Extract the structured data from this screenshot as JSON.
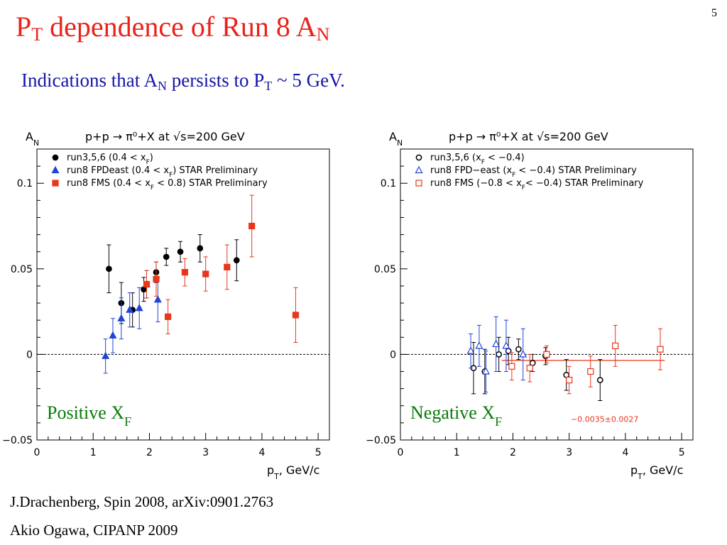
{
  "page_number": "5",
  "title": {
    "main": "P",
    "sub_t": "T",
    "middle": " dependence of Run 8 A",
    "sub_n": "N"
  },
  "subtitle": {
    "pre": "Indications that A",
    "sub_n": "N",
    "mid": " persists to P",
    "sub_t": "T",
    "post": " ~ 5 GeV."
  },
  "footer": {
    "line1": "J.Drachenberg, Spin 2008, arXiv:0901.2763",
    "line2": "Akio Ogawa, CIPANP 2009"
  },
  "colors": {
    "title": "#e8231b",
    "subtitle": "#1515a8",
    "black": "#000000",
    "blue": "#1f45d6",
    "red": "#e8361b",
    "green": "#0a7a0a"
  },
  "chart_data": [
    {
      "type": "scatter",
      "title": "p+p → π⁰+X at √s=200 GeV",
      "ylabel": "A_N",
      "xlabel": "p_T, GeV/c",
      "xlim": [
        0,
        5.2
      ],
      "ylim": [
        -0.05,
        0.12
      ],
      "xticks": [
        0,
        1,
        2,
        3,
        4,
        5
      ],
      "yticks": [
        -0.05,
        0,
        0.05,
        0.1
      ],
      "ytick_labels": [
        "−0.05",
        "0",
        "0.05",
        "0.1"
      ],
      "grid": false,
      "legend_position": "top-left",
      "annotation": "Positive X_F",
      "series": [
        {
          "name": "run3,5,6 (0.4 < x_F)",
          "marker": "circle-filled",
          "color": "#000000",
          "x": [
            1.28,
            1.5,
            1.7,
            1.9,
            2.12,
            2.3,
            2.55,
            2.9,
            3.55
          ],
          "y": [
            0.05,
            0.03,
            0.026,
            0.038,
            0.048,
            0.057,
            0.06,
            0.062,
            0.055
          ],
          "err": [
            0.014,
            0.012,
            0.01,
            0.007,
            0.006,
            0.005,
            0.006,
            0.008,
            0.012
          ]
        },
        {
          "name": "run8 FPDeast (0.4 < x_F)  STAR Preliminary",
          "marker": "triangle-filled",
          "color": "#1f45d6",
          "x": [
            1.22,
            1.35,
            1.5,
            1.65,
            1.82,
            1.95,
            2.15
          ],
          "y": [
            -0.001,
            0.011,
            0.021,
            0.026,
            0.027,
            0.041,
            0.032
          ],
          "err": [
            0.01,
            0.01,
            0.012,
            0.01,
            0.012,
            0.008,
            0.013
          ]
        },
        {
          "name": "run8 FMS (0.4 < x_F < 0.8) STAR Preliminary",
          "marker": "square-filled",
          "color": "#e8361b",
          "x": [
            1.95,
            2.12,
            2.33,
            2.63,
            3.0,
            3.38,
            3.82,
            4.6
          ],
          "y": [
            0.041,
            0.044,
            0.022,
            0.048,
            0.047,
            0.051,
            0.075,
            0.023
          ],
          "err": [
            0.008,
            0.01,
            0.01,
            0.008,
            0.01,
            0.013,
            0.018,
            0.016
          ]
        }
      ]
    },
    {
      "type": "scatter",
      "title": "p+p → π⁰+X at √s=200 GeV",
      "ylabel": "A_N",
      "xlabel": "p_T, GeV/c",
      "xlim": [
        0,
        5.2
      ],
      "ylim": [
        -0.05,
        0.12
      ],
      "xticks": [
        0,
        1,
        2,
        3,
        4,
        5
      ],
      "yticks": [
        -0.05,
        0,
        0.05,
        0.1
      ],
      "ytick_labels": [
        "−0.05",
        "0",
        "0.05",
        "0.1"
      ],
      "grid": false,
      "legend_position": "top-left",
      "annotation": "Negative X_F",
      "fit_label": "−0.0035±0.0027",
      "fit_value": -0.0035,
      "fit_range": [
        1.8,
        4.7
      ],
      "series": [
        {
          "name": "run3,5,6        (x_F < −0.4)",
          "marker": "circle-open",
          "color": "#000000",
          "x": [
            1.3,
            1.5,
            1.75,
            1.92,
            2.1,
            2.35,
            2.58,
            2.95,
            3.55
          ],
          "y": [
            -0.008,
            -0.01,
            0.0,
            0.002,
            0.003,
            -0.005,
            -0.001,
            -0.012,
            -0.015
          ],
          "err": [
            0.015,
            0.013,
            0.01,
            0.008,
            0.006,
            0.005,
            0.005,
            0.009,
            0.012
          ]
        },
        {
          "name": "run8 FPD−east (x_F < −0.4) STAR Preliminary",
          "marker": "triangle-open",
          "color": "#1f45d6",
          "x": [
            1.25,
            1.4,
            1.52,
            1.7,
            1.88,
            2.18
          ],
          "y": [
            0.002,
            0.005,
            -0.01,
            0.006,
            0.005,
            0.0
          ],
          "err": [
            0.01,
            0.012,
            0.012,
            0.016,
            0.015,
            0.015
          ]
        },
        {
          "name": "run8 FMS (−0.8 < x_F< −0.4) STAR Preliminary",
          "marker": "square-open",
          "color": "#e8361b",
          "x": [
            1.98,
            2.3,
            2.6,
            3.0,
            3.38,
            3.82,
            4.62
          ],
          "y": [
            -0.007,
            -0.008,
            0.0,
            -0.015,
            -0.01,
            0.005,
            0.003
          ],
          "err": [
            0.008,
            0.008,
            0.005,
            0.008,
            0.009,
            0.012,
            0.012
          ]
        }
      ]
    }
  ]
}
